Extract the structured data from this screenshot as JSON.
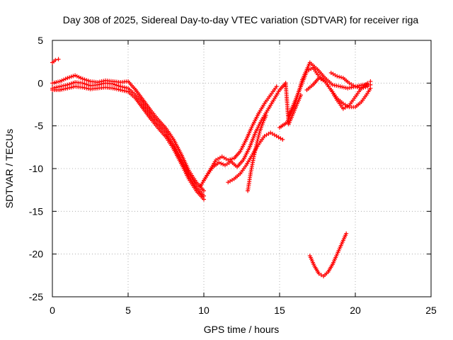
{
  "chart_data": {
    "type": "scatter",
    "title": "Day 308 of 2025, Sidereal Day-to-day VTEC variation (SDTVAR) for receiver riga",
    "xlabel": "GPS time / hours",
    "ylabel": "SDTVAR / TECUs",
    "xlim": [
      0,
      25
    ],
    "ylim": [
      -25,
      5
    ],
    "grid": true,
    "xticks": [
      0,
      5,
      10,
      15,
      20,
      25
    ],
    "yticks": [
      5,
      0,
      -5,
      -10,
      -15,
      -20,
      -25
    ],
    "xtick_labels": [
      "0",
      "5",
      "10",
      "15",
      "20",
      "25"
    ],
    "ytick_labels": [
      "5",
      "0",
      "-5",
      "-10",
      "-15",
      "-20",
      "-25"
    ],
    "marker": "+",
    "color": "#ff0000",
    "series": [
      {
        "name": "early_arc",
        "x": [
          0.0,
          0.2,
          0.4
        ],
        "y": [
          2.4,
          2.7,
          2.8
        ]
      },
      {
        "name": "main_arc_a",
        "x": [
          0.0,
          0.5,
          1.0,
          1.5,
          2.0,
          2.5,
          3.0,
          3.5,
          4.0,
          4.5,
          5.0,
          5.5,
          6.0,
          6.5,
          7.0,
          7.5,
          8.0,
          8.5,
          9.0,
          9.5,
          10.0
        ],
        "y": [
          0.0,
          0.2,
          0.6,
          0.9,
          0.5,
          0.2,
          0.1,
          0.3,
          0.2,
          0.1,
          0.2,
          -0.8,
          -2.0,
          -3.2,
          -4.3,
          -5.3,
          -6.6,
          -8.3,
          -10.2,
          -11.6,
          -12.6
        ]
      },
      {
        "name": "main_arc_b",
        "x": [
          0.0,
          0.5,
          1.0,
          1.5,
          2.0,
          2.5,
          3.0,
          3.5,
          4.0,
          4.5,
          5.0,
          5.5,
          6.0,
          6.5,
          7.0,
          7.5,
          8.0,
          8.5,
          9.0,
          9.5,
          10.0
        ],
        "y": [
          -0.6,
          -0.4,
          -0.2,
          0.1,
          0.0,
          -0.3,
          -0.2,
          0.0,
          -0.1,
          -0.4,
          -0.6,
          -1.4,
          -2.5,
          -3.7,
          -4.8,
          -5.8,
          -7.2,
          -8.9,
          -10.7,
          -12.1,
          -13.2
        ]
      },
      {
        "name": "main_arc_c",
        "x": [
          0.0,
          0.5,
          1.0,
          1.5,
          2.0,
          2.5,
          3.0,
          3.5,
          4.0,
          4.5,
          5.0,
          5.5,
          6.0,
          6.5,
          7.0,
          7.5,
          8.0,
          8.5,
          9.0,
          9.5,
          10.0
        ],
        "y": [
          -0.8,
          -0.8,
          -0.6,
          -0.4,
          -0.5,
          -0.7,
          -0.6,
          -0.5,
          -0.6,
          -0.8,
          -1.0,
          -1.8,
          -3.0,
          -4.2,
          -5.3,
          -6.3,
          -7.7,
          -9.4,
          -11.2,
          -12.6,
          -13.6
        ]
      },
      {
        "name": "recovery_a",
        "x": [
          9.8,
          10.2,
          10.6,
          11.0,
          11.4,
          11.8,
          12.2,
          12.6,
          13.0,
          13.4,
          13.8,
          14.2,
          14.6,
          15.0,
          15.4
        ],
        "y": [
          -12.0,
          -10.8,
          -9.8,
          -9.3,
          -9.6,
          -9.2,
          -9.8,
          -9.0,
          -7.6,
          -5.8,
          -4.4,
          -3.2,
          -2.0,
          -0.8,
          0.0
        ]
      },
      {
        "name": "recovery_b",
        "x": [
          10.0,
          10.4,
          10.8,
          11.2,
          11.6,
          12.0,
          12.4,
          12.8,
          13.2,
          13.6,
          14.0,
          14.4,
          14.8
        ],
        "y": [
          -11.4,
          -10.2,
          -9.0,
          -8.6,
          -9.0,
          -8.8,
          -8.0,
          -6.6,
          -5.0,
          -3.6,
          -2.4,
          -1.4,
          -0.4
        ]
      },
      {
        "name": "recovery_c",
        "x": [
          11.6,
          12.0,
          12.4,
          12.8,
          13.2,
          13.6,
          14.0,
          14.4,
          14.8,
          15.2
        ],
        "y": [
          -11.6,
          -11.2,
          -10.6,
          -9.6,
          -8.4,
          -7.2,
          -6.2,
          -5.8,
          -6.2,
          -6.6
        ]
      },
      {
        "name": "steep_arc",
        "x": [
          12.9,
          13.1,
          13.3,
          13.5,
          13.7,
          13.9,
          14.1
        ],
        "y": [
          -12.6,
          -10.4,
          -8.6,
          -7.0,
          -5.6,
          -4.6,
          -3.8
        ]
      },
      {
        "name": "afternoon_a",
        "x": [
          15.0,
          15.5,
          16.0,
          16.5,
          17.0,
          17.5,
          18.0,
          18.5,
          19.0,
          19.5,
          20.0,
          20.5,
          21.0
        ],
        "y": [
          -5.2,
          -4.6,
          -2.6,
          0.4,
          2.4,
          1.6,
          0.6,
          -0.2,
          -0.4,
          -0.6,
          -0.4,
          -0.2,
          -0.2
        ]
      },
      {
        "name": "afternoon_b",
        "x": [
          15.6,
          16.0,
          16.4,
          16.8,
          17.2,
          17.6,
          18.0,
          18.4,
          18.8,
          19.2,
          19.6,
          20.0,
          20.4,
          20.8,
          21.0
        ],
        "y": [
          -3.8,
          -2.2,
          -0.4,
          1.4,
          1.8,
          0.8,
          0.2,
          -0.8,
          -1.8,
          -2.4,
          -2.8,
          -2.8,
          -2.2,
          -1.2,
          -0.6
        ]
      },
      {
        "name": "afternoon_c",
        "x": [
          16.8,
          17.2,
          17.6,
          18.0,
          18.4,
          18.8,
          19.2,
          19.6,
          20.0,
          20.4,
          20.8,
          21.0
        ],
        "y": [
          -0.8,
          -0.2,
          0.6,
          0.2,
          -0.8,
          -2.0,
          -3.0,
          -2.6,
          -1.6,
          -0.6,
          0.0,
          0.2
        ]
      },
      {
        "name": "afternoon_d",
        "x": [
          18.4,
          18.8,
          19.2,
          19.6,
          20.0,
          20.4,
          20.8
        ],
        "y": [
          1.2,
          0.8,
          0.6,
          0.0,
          -0.4,
          -0.6,
          -0.4
        ]
      },
      {
        "name": "isolated",
        "x": [
          15.4,
          15.6,
          16.4
        ],
        "y": [
          0.0,
          -4.8,
          -1.4
        ]
      },
      {
        "name": "late_arc",
        "x": [
          17.0,
          17.3,
          17.6,
          17.9,
          18.2,
          18.5,
          18.8,
          19.1,
          19.4
        ],
        "y": [
          -20.2,
          -21.4,
          -22.3,
          -22.6,
          -22.1,
          -21.2,
          -20.0,
          -18.8,
          -17.6
        ]
      }
    ]
  }
}
